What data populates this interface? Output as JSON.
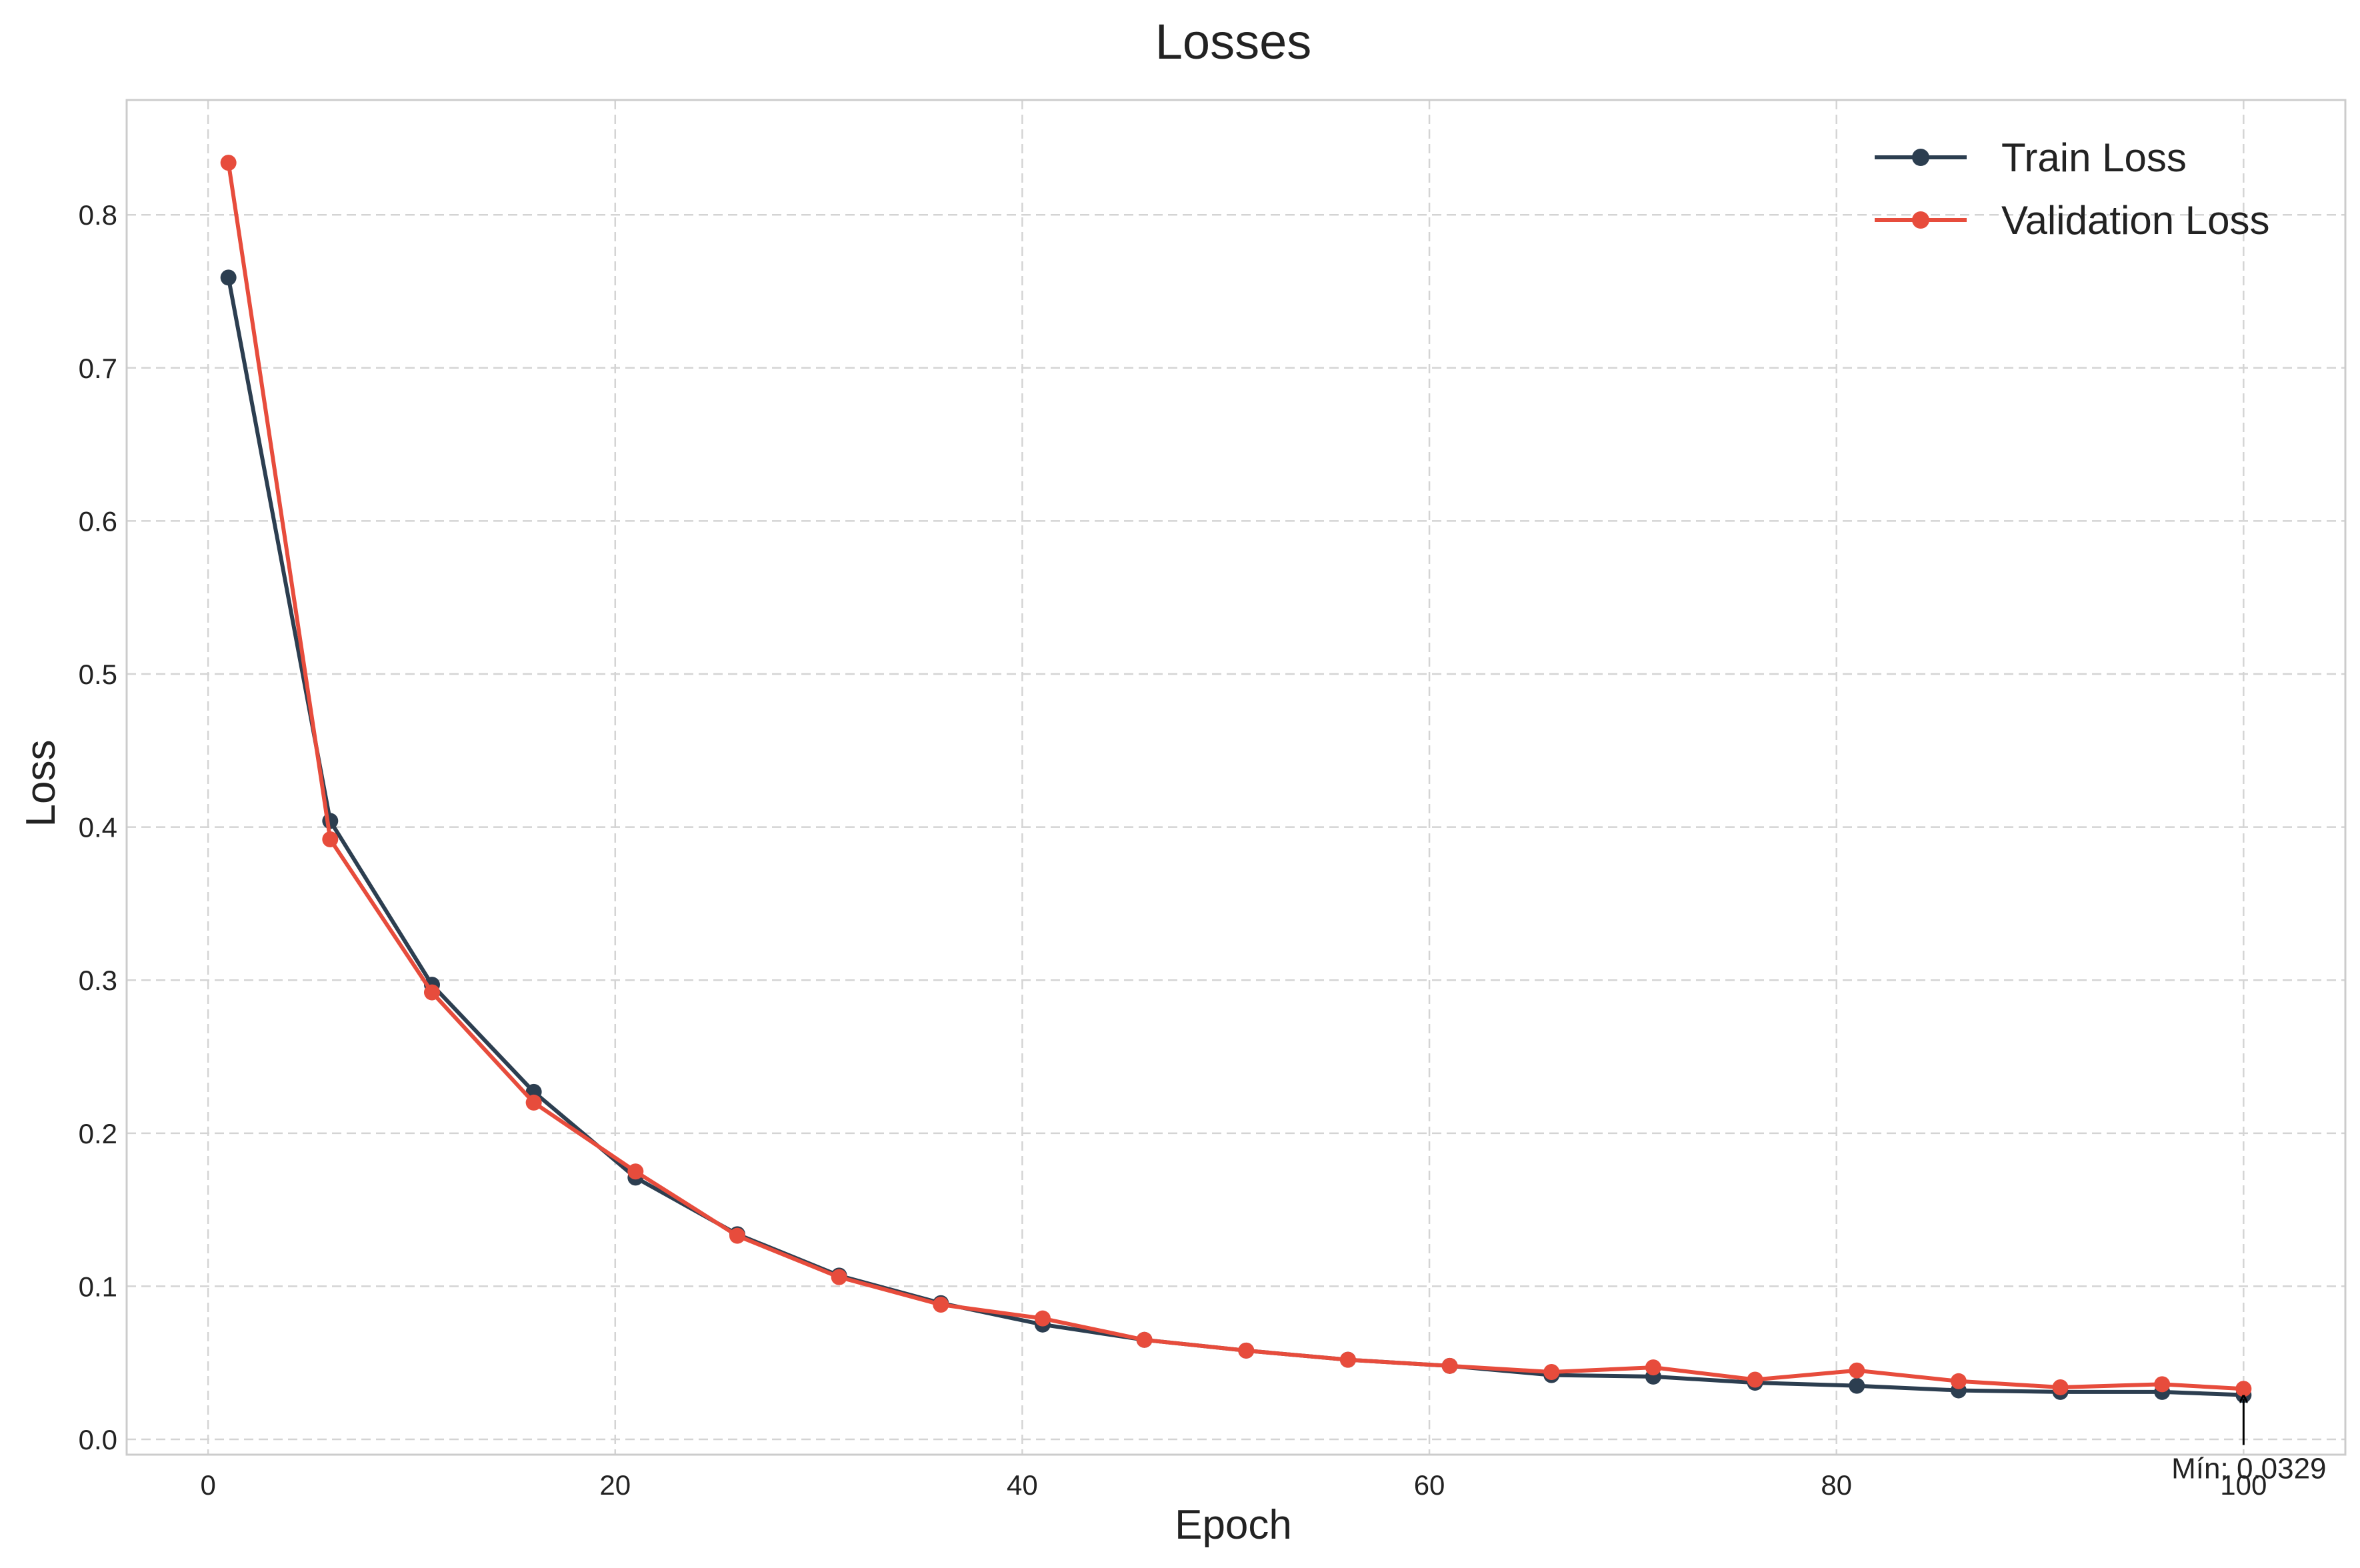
{
  "chart_data": {
    "type": "line",
    "title": "Losses",
    "xlabel": "Epoch",
    "ylabel": "Loss",
    "xlim": [
      -4,
      105
    ],
    "ylim": [
      -0.01,
      0.875
    ],
    "xticks": [
      0,
      20,
      40,
      60,
      80,
      100
    ],
    "yticks": [
      0.0,
      0.1,
      0.2,
      0.3,
      0.4,
      0.5,
      0.6,
      0.7,
      0.8
    ],
    "grid": true,
    "legend_position": "top-right",
    "x": [
      1,
      6,
      11,
      16,
      21,
      26,
      31,
      36,
      41,
      46,
      51,
      56,
      61,
      66,
      71,
      76,
      81,
      86,
      91,
      96,
      100
    ],
    "series": [
      {
        "name": "Train Loss",
        "color": "#2c3e50",
        "values": [
          0.759,
          0.404,
          0.297,
          0.227,
          0.171,
          0.134,
          0.107,
          0.089,
          0.075,
          0.065,
          0.058,
          0.052,
          0.048,
          0.042,
          0.041,
          0.037,
          0.035,
          0.032,
          0.031,
          0.031,
          0.029
        ]
      },
      {
        "name": "Validation Loss",
        "color": "#e74c3c",
        "values": [
          0.834,
          0.392,
          0.292,
          0.22,
          0.175,
          0.133,
          0.106,
          0.088,
          0.079,
          0.065,
          0.058,
          0.052,
          0.048,
          0.044,
          0.047,
          0.039,
          0.045,
          0.038,
          0.034,
          0.036,
          0.033
        ]
      }
    ],
    "annotation": {
      "text": "Mín: 0.0329",
      "x": 100,
      "y": 0.029
    }
  }
}
